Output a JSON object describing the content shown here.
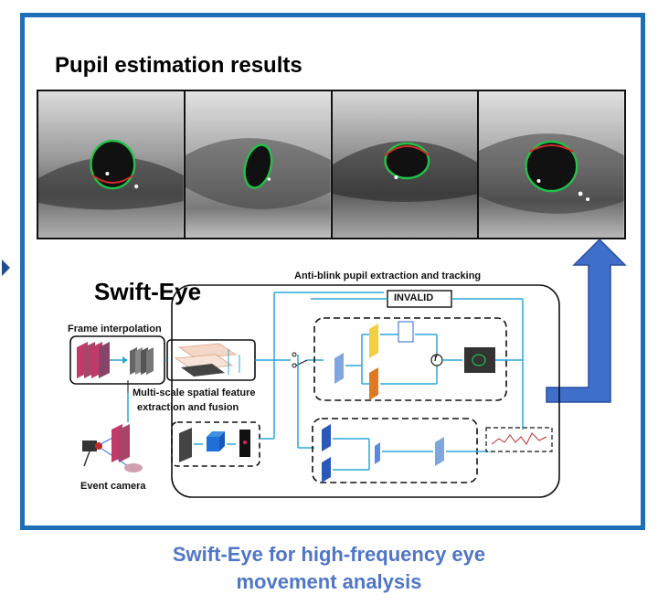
{
  "title": "Pupil estimation results",
  "swift_eye_label": "Swift-Eye",
  "labels": {
    "anti_blink": "Anti-blink pupil extraction and tracking",
    "invalid": "INVALID",
    "frame_interpolation": "Frame interpolation",
    "multi_scale_1": "Multi-scale spatial feature",
    "multi_scale_2": "extraction and fusion",
    "event_camera": "Event camera",
    "f_symbol": "f"
  },
  "caption": {
    "line1": "Swift-Eye for high-frequency eye",
    "line2": "movement analysis"
  },
  "eye_images": [
    {
      "icon": "eye-image-1"
    },
    {
      "icon": "eye-image-2"
    },
    {
      "icon": "eye-image-3"
    },
    {
      "icon": "eye-image-4"
    }
  ],
  "colors": {
    "frame_border": "#1f6fb8",
    "caption": "#4f76c7",
    "connector": "#2aa7d8",
    "big_arrow": "#3f6fc8",
    "pupil_fit_green": "#22c24a",
    "pupil_fit_red": "#d42a2a"
  }
}
